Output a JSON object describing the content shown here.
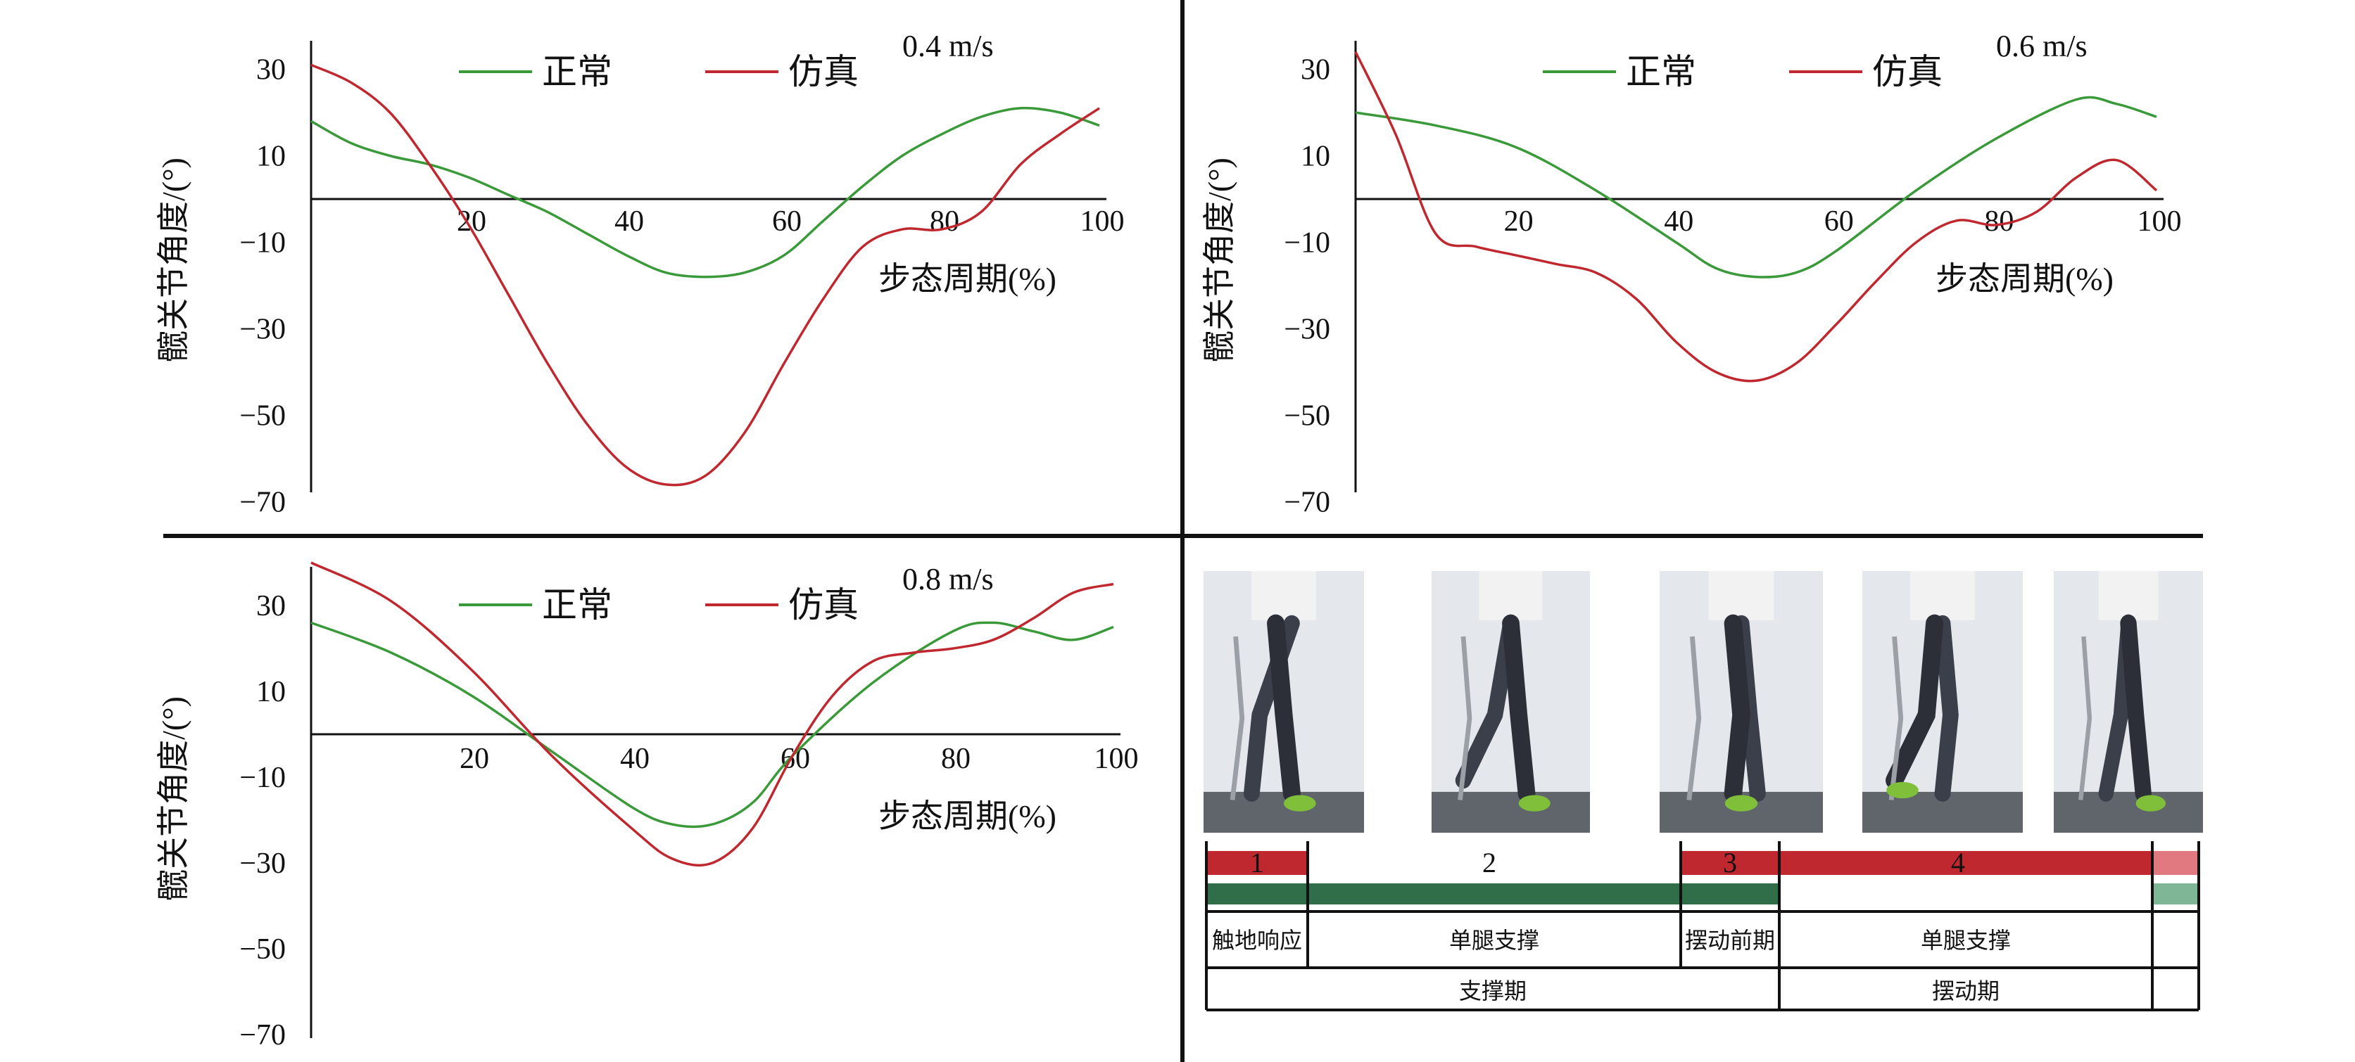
{
  "chart_data": [
    {
      "type": "line",
      "annotation": "0.4 m/s",
      "ylabel": "髋关节角度/(°)",
      "xlabel": "步态周期(%)",
      "xticks": [
        20,
        40,
        60,
        80,
        100
      ],
      "yticks": [
        30,
        10,
        -10,
        -30,
        -50,
        -70
      ],
      "xlim": [
        0,
        100
      ],
      "ylim": [
        -70,
        30
      ],
      "legend": [
        "正常",
        "仿真"
      ],
      "series": [
        {
          "name": "正常",
          "color": "#3a9a3a",
          "points": [
            [
              0,
              18
            ],
            [
              5,
              13
            ],
            [
              10,
              10
            ],
            [
              15,
              8
            ],
            [
              20,
              5
            ],
            [
              25,
              1
            ],
            [
              30,
              -3
            ],
            [
              35,
              -8
            ],
            [
              40,
              -13
            ],
            [
              45,
              -17
            ],
            [
              50,
              -18
            ],
            [
              55,
              -17
            ],
            [
              60,
              -13
            ],
            [
              65,
              -5
            ],
            [
              70,
              3
            ],
            [
              75,
              10
            ],
            [
              80,
              15
            ],
            [
              85,
              19
            ],
            [
              90,
              21
            ],
            [
              95,
              20
            ],
            [
              100,
              17
            ]
          ]
        },
        {
          "name": "仿真",
          "color": "#c0282f",
          "points": [
            [
              0,
              31
            ],
            [
              5,
              27
            ],
            [
              10,
              20
            ],
            [
              15,
              8
            ],
            [
              20,
              -6
            ],
            [
              25,
              -22
            ],
            [
              30,
              -38
            ],
            [
              35,
              -52
            ],
            [
              40,
              -62
            ],
            [
              45,
              -66
            ],
            [
              50,
              -64
            ],
            [
              55,
              -54
            ],
            [
              60,
              -38
            ],
            [
              65,
              -23
            ],
            [
              70,
              -11
            ],
            [
              75,
              -7
            ],
            [
              80,
              -7
            ],
            [
              85,
              -3
            ],
            [
              90,
              8
            ],
            [
              95,
              15
            ],
            [
              100,
              21
            ]
          ]
        }
      ]
    },
    {
      "type": "line",
      "annotation": "0.6 m/s",
      "ylabel": "髋关节角度/(°)",
      "xlabel": "步态周期(%)",
      "xticks": [
        20,
        40,
        60,
        80,
        100
      ],
      "yticks": [
        30,
        10,
        -10,
        -30,
        -50,
        -70
      ],
      "xlim": [
        0,
        100
      ],
      "ylim": [
        -70,
        30
      ],
      "legend": [
        "正常",
        "仿真"
      ],
      "series": [
        {
          "name": "正常",
          "color": "#3a9a3a",
          "points": [
            [
              0,
              20
            ],
            [
              10,
              17
            ],
            [
              20,
              12
            ],
            [
              30,
              2
            ],
            [
              40,
              -10
            ],
            [
              45,
              -16
            ],
            [
              50,
              -18
            ],
            [
              55,
              -17
            ],
            [
              60,
              -12
            ],
            [
              70,
              2
            ],
            [
              80,
              14
            ],
            [
              90,
              23
            ],
            [
              95,
              22
            ],
            [
              100,
              19
            ]
          ]
        },
        {
          "name": "仿真",
          "color": "#c0282f",
          "points": [
            [
              0,
              34
            ],
            [
              5,
              15
            ],
            [
              10,
              -8
            ],
            [
              15,
              -11
            ],
            [
              20,
              -13
            ],
            [
              25,
              -15
            ],
            [
              30,
              -17
            ],
            [
              35,
              -23
            ],
            [
              40,
              -33
            ],
            [
              45,
              -40
            ],
            [
              50,
              -42
            ],
            [
              55,
              -38
            ],
            [
              60,
              -29
            ],
            [
              65,
              -19
            ],
            [
              70,
              -10
            ],
            [
              75,
              -5
            ],
            [
              80,
              -6
            ],
            [
              85,
              -3
            ],
            [
              90,
              5
            ],
            [
              95,
              9
            ],
            [
              100,
              2
            ]
          ]
        }
      ]
    },
    {
      "type": "line",
      "annotation": "0.8 m/s",
      "ylabel": "髋关节角度/(°)",
      "xlabel": "步态周期(%)",
      "xticks": [
        20,
        40,
        60,
        80,
        100
      ],
      "yticks": [
        30,
        10,
        -10,
        -30,
        -50,
        -70
      ],
      "xlim": [
        0,
        100
      ],
      "ylim": [
        -70,
        30
      ],
      "legend": [
        "正常",
        "仿真"
      ],
      "series": [
        {
          "name": "正常",
          "color": "#3a9a3a",
          "points": [
            [
              0,
              26
            ],
            [
              10,
              19
            ],
            [
              20,
              9
            ],
            [
              30,
              -4
            ],
            [
              40,
              -17
            ],
            [
              45,
              -21
            ],
            [
              50,
              -21
            ],
            [
              55,
              -16
            ],
            [
              60,
              -5
            ],
            [
              70,
              12
            ],
            [
              80,
              24
            ],
            [
              85,
              26
            ],
            [
              90,
              24
            ],
            [
              95,
              22
            ],
            [
              100,
              25
            ]
          ]
        },
        {
          "name": "仿真",
          "color": "#c0282f",
          "points": [
            [
              0,
              40
            ],
            [
              10,
              31
            ],
            [
              20,
              15
            ],
            [
              30,
              -5
            ],
            [
              40,
              -22
            ],
            [
              45,
              -29
            ],
            [
              50,
              -30
            ],
            [
              55,
              -22
            ],
            [
              60,
              -5
            ],
            [
              65,
              9
            ],
            [
              70,
              17
            ],
            [
              75,
              19
            ],
            [
              80,
              20
            ],
            [
              85,
              22
            ],
            [
              90,
              27
            ],
            [
              95,
              33
            ],
            [
              100,
              35
            ]
          ]
        }
      ]
    }
  ],
  "gait_table": {
    "phase_numbers": [
      "1",
      "2",
      "3",
      "4"
    ],
    "sub_phases": [
      "触地响应",
      "单腿支撑",
      "摆动前期",
      "单腿支撑"
    ],
    "phases": [
      "支撑期",
      "摆动期"
    ]
  },
  "colors": {
    "normal": "#3a9a3a",
    "sim": "#c0282f",
    "bar_green": "#2f6e48",
    "bar_red": "#c0282f"
  }
}
